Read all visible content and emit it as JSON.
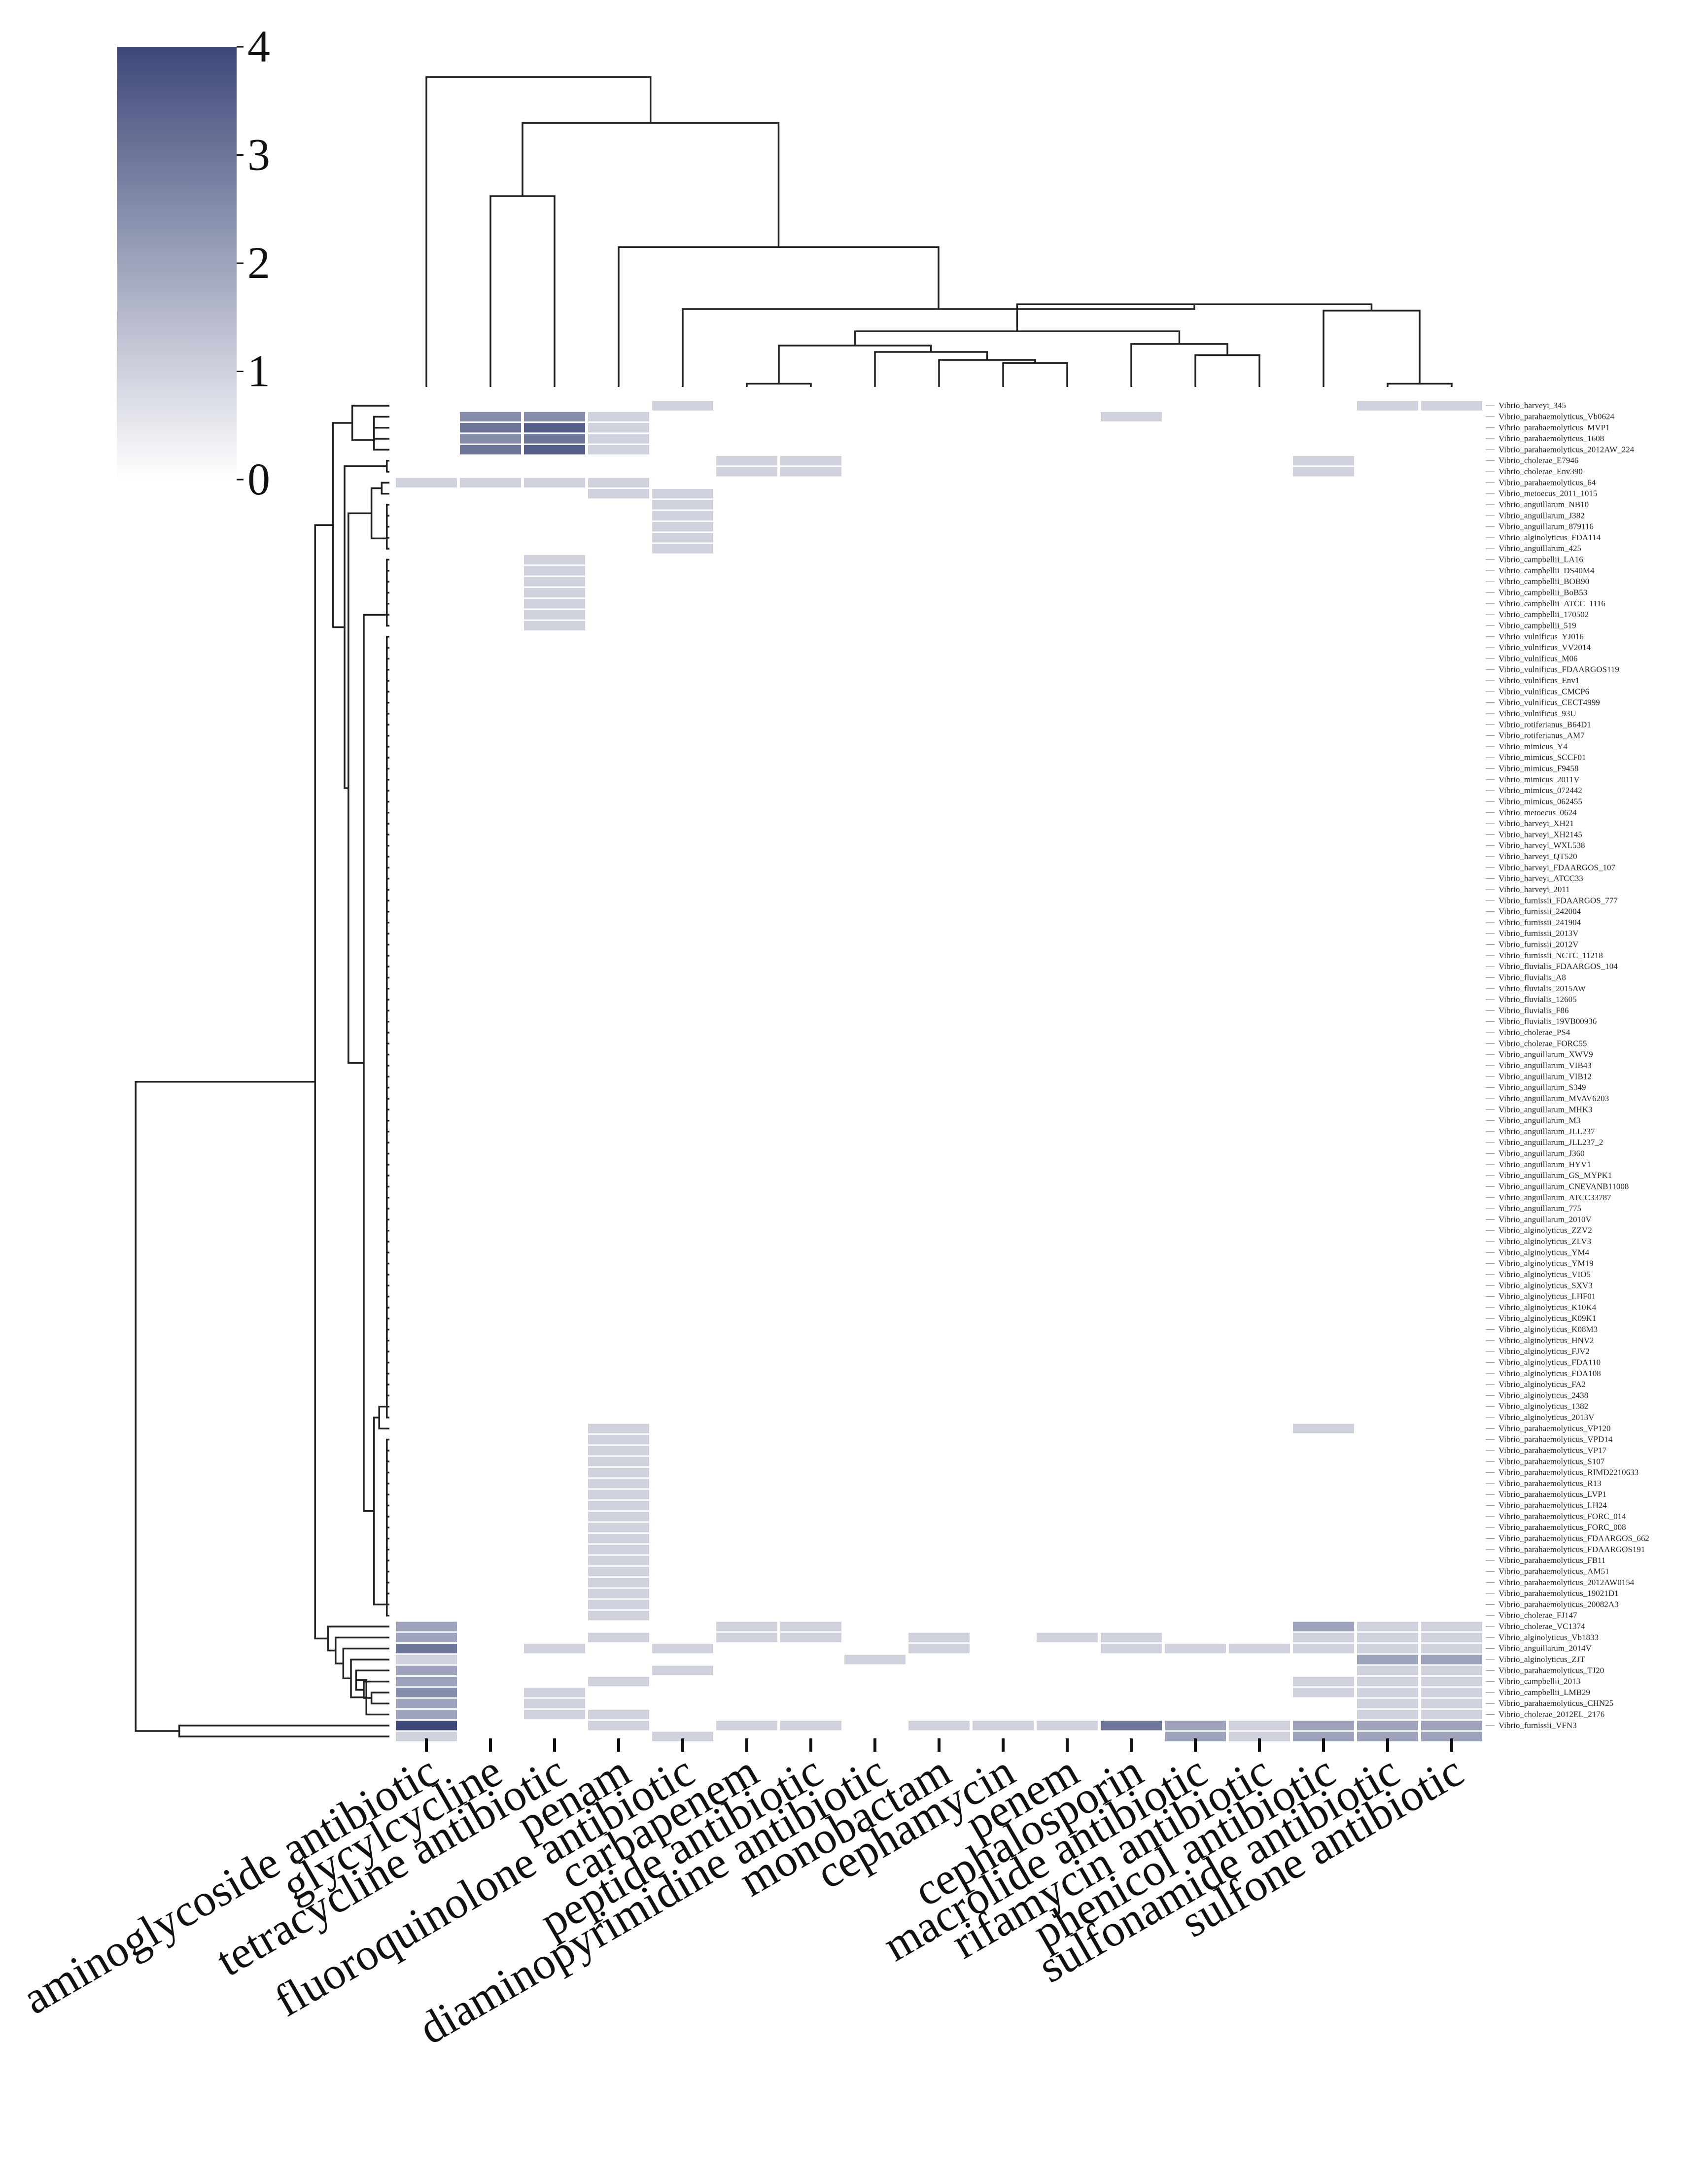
{
  "chart_data": {
    "type": "heatmap",
    "title": "",
    "colorbar": {
      "min": 0,
      "max": 4,
      "ticks": [
        0,
        1,
        2,
        3,
        4
      ],
      "low_color": "#ffffff",
      "high_color": "#3d4878"
    },
    "columns": [
      "aminoglycoside antibiotic",
      "glycylcycline",
      "tetracycline antibiotic",
      "penam",
      "fluoroquinolone antibiotic",
      "carbapenem",
      "peptide antibiotic",
      "diaminopyrimidine antibiotic",
      "monobactam",
      "cephamycin",
      "penem",
      "cephalosporin",
      "macrolide antibiotic",
      "rifamycin antibiotic",
      "phenicol antibiotic",
      "sulfonamide antibiotic",
      "sulfone antibiotic"
    ],
    "rows": [
      "Vibrio_harveyi_345",
      "Vibrio_parahaemolyticus_Vb0624",
      "Vibrio_parahaemolyticus_MVP1",
      "Vibrio_parahaemolyticus_1608",
      "Vibrio_parahaemolyticus_2012AW_224",
      "Vibrio_cholerae_E7946",
      "Vibrio_cholerae_Env390",
      "Vibrio_parahaemolyticus_64",
      "Vibrio_metoecus_2011_1015",
      "Vibrio_anguillarum_NB10",
      "Vibrio_anguillarum_J382",
      "Vibrio_anguillarum_879116",
      "Vibrio_alginolyticus_FDA114",
      "Vibrio_anguillarum_425",
      "Vibrio_campbellii_LA16",
      "Vibrio_campbellii_DS40M4",
      "Vibrio_campbellii_BOB90",
      "Vibrio_campbellii_BoB53",
      "Vibrio_campbellii_ATCC_1116",
      "Vibrio_campbellii_170502",
      "Vibrio_campbellii_519",
      "Vibrio_vulnificus_YJ016",
      "Vibrio_vulnificus_VV2014",
      "Vibrio_vulnificus_M06",
      "Vibrio_vulnificus_FDAARGOS119",
      "Vibrio_vulnificus_Env1",
      "Vibrio_vulnificus_CMCP6",
      "Vibrio_vulnificus_CECT4999",
      "Vibrio_vulnificus_93U",
      "Vibrio_rotiferianus_B64D1",
      "Vibrio_rotiferianus_AM7",
      "Vibrio_mimicus_Y4",
      "Vibrio_mimicus_SCCF01",
      "Vibrio_mimicus_F9458",
      "Vibrio_mimicus_2011V",
      "Vibrio_mimicus_072442",
      "Vibrio_mimicus_062455",
      "Vibrio_metoecus_0624",
      "Vibrio_harveyi_XH21",
      "Vibrio_harveyi_XH2145",
      "Vibrio_harveyi_WXL538",
      "Vibrio_harveyi_QT520",
      "Vibrio_harveyi_FDAARGOS_107",
      "Vibrio_harveyi_ATCC33",
      "Vibrio_harveyi_2011",
      "Vibrio_furnissii_FDAARGOS_777",
      "Vibrio_furnissii_242004",
      "Vibrio_furnissii_241904",
      "Vibrio_furnissii_2013V",
      "Vibrio_furnissii_2012V",
      "Vibrio_furnissii_NCTC_11218",
      "Vibrio_fluvialis_FDAARGOS_104",
      "Vibrio_fluvialis_A8",
      "Vibrio_fluvialis_2015AW",
      "Vibrio_fluvialis_12605",
      "Vibrio_fluvialis_F86",
      "Vibrio_fluvialis_19VB00936",
      "Vibrio_cholerae_PS4",
      "Vibrio_cholerae_FORC55",
      "Vibrio_anguillarum_XWV9",
      "Vibrio_anguillarum_VIB43",
      "Vibrio_anguillarum_VIB12",
      "Vibrio_anguillarum_S349",
      "Vibrio_anguillarum_MVAV6203",
      "Vibrio_anguillarum_MHK3",
      "Vibrio_anguillarum_M3",
      "Vibrio_anguillarum_JLL237",
      "Vibrio_anguillarum_JLL237_2",
      "Vibrio_anguillarum_J360",
      "Vibrio_anguillarum_HYV1",
      "Vibrio_anguillarum_GS_MYPK1",
      "Vibrio_anguillarum_CNEVANB11008",
      "Vibrio_anguillarum_ATCC33787",
      "Vibrio_anguillarum_775",
      "Vibrio_anguillarum_2010V",
      "Vibrio_alginolyticus_ZZV2",
      "Vibrio_alginolyticus_ZLV3",
      "Vibrio_alginolyticus_YM4",
      "Vibrio_alginolyticus_YM19",
      "Vibrio_alginolyticus_VIO5",
      "Vibrio_alginolyticus_SXV3",
      "Vibrio_alginolyticus_LHF01",
      "Vibrio_alginolyticus_K10K4",
      "Vibrio_alginolyticus_K09K1",
      "Vibrio_alginolyticus_K08M3",
      "Vibrio_alginolyticus_HNV2",
      "Vibrio_alginolyticus_FJV2",
      "Vibrio_alginolyticus_FDA110",
      "Vibrio_alginolyticus_FDA108",
      "Vibrio_alginolyticus_FA2",
      "Vibrio_alginolyticus_2438",
      "Vibrio_alginolyticus_1382",
      "Vibrio_alginolyticus_2013V",
      "Vibrio_parahaemolyticus_VP120",
      "Vibrio_parahaemolyticus_VPD14",
      "Vibrio_parahaemolyticus_VP17",
      "Vibrio_parahaemolyticus_S107",
      "Vibrio_parahaemolyticus_RIMD2210633",
      "Vibrio_parahaemolyticus_R13",
      "Vibrio_parahaemolyticus_LVP1",
      "Vibrio_parahaemolyticus_LH24",
      "Vibrio_parahaemolyticus_FORC_014",
      "Vibrio_parahaemolyticus_FORC_008",
      "Vibrio_parahaemolyticus_FDAARGOS_662",
      "Vibrio_parahaemolyticus_FDAARGOS191",
      "Vibrio_parahaemolyticus_FB11",
      "Vibrio_parahaemolyticus_AM51",
      "Vibrio_parahaemolyticus_2012AW0154",
      "Vibrio_parahaemolyticus_19021D1",
      "Vibrio_parahaemolyticus_20082A3",
      "Vibrio_cholerae_FJ147",
      "Vibrio_cholerae_VC1374",
      "Vibrio_alginolyticus_Vb1833",
      "Vibrio_anguillarum_2014V",
      "Vibrio_alginolyticus_ZJT",
      "Vibrio_parahaemolyticus_TJ20",
      "Vibrio_campbellii_2013",
      "Vibrio_campbellii_LMB29",
      "Vibrio_parahaemolyticus_CHN25",
      "Vibrio_cholerae_2012EL_2176",
      "Vibrio_furnissii_VFN3"
    ],
    "nonzero_cells": [
      [
        0,
        4,
        1
      ],
      [
        0,
        15,
        1
      ],
      [
        0,
        16,
        1
      ],
      [
        1,
        1,
        2.5
      ],
      [
        1,
        2,
        2.5
      ],
      [
        1,
        3,
        1
      ],
      [
        1,
        11,
        1
      ],
      [
        2,
        1,
        3
      ],
      [
        2,
        2,
        3.5
      ],
      [
        2,
        3,
        1
      ],
      [
        3,
        1,
        2.5
      ],
      [
        3,
        2,
        3
      ],
      [
        3,
        3,
        1
      ],
      [
        4,
        1,
        3
      ],
      [
        4,
        2,
        3.5
      ],
      [
        4,
        3,
        1
      ],
      [
        5,
        5,
        1
      ],
      [
        5,
        6,
        1
      ],
      [
        5,
        14,
        1
      ],
      [
        6,
        5,
        1
      ],
      [
        6,
        6,
        1
      ],
      [
        6,
        14,
        1
      ],
      [
        7,
        0,
        1
      ],
      [
        7,
        1,
        1
      ],
      [
        7,
        2,
        1
      ],
      [
        7,
        3,
        1
      ],
      [
        8,
        3,
        1
      ],
      [
        8,
        4,
        1
      ],
      [
        9,
        4,
        1
      ],
      [
        10,
        4,
        1
      ],
      [
        11,
        4,
        1
      ],
      [
        12,
        4,
        1
      ],
      [
        13,
        4,
        1
      ],
      [
        14,
        2,
        1
      ],
      [
        15,
        2,
        1
      ],
      [
        16,
        2,
        1
      ],
      [
        17,
        2,
        1
      ],
      [
        18,
        2,
        1
      ],
      [
        19,
        2,
        1
      ],
      [
        20,
        2,
        1
      ],
      [
        93,
        3,
        1
      ],
      [
        93,
        14,
        1
      ],
      [
        94,
        3,
        1
      ],
      [
        95,
        3,
        1
      ],
      [
        96,
        3,
        1
      ],
      [
        97,
        3,
        1
      ],
      [
        98,
        3,
        1
      ],
      [
        99,
        3,
        1
      ],
      [
        100,
        3,
        1
      ],
      [
        101,
        3,
        1
      ],
      [
        102,
        3,
        1
      ],
      [
        103,
        3,
        1
      ],
      [
        104,
        3,
        1
      ],
      [
        105,
        3,
        1
      ],
      [
        106,
        3,
        1
      ],
      [
        107,
        3,
        1
      ],
      [
        108,
        3,
        1
      ],
      [
        109,
        3,
        1
      ],
      [
        110,
        3,
        1
      ],
      [
        111,
        0,
        2
      ],
      [
        111,
        5,
        1
      ],
      [
        111,
        6,
        1
      ],
      [
        111,
        14,
        2
      ],
      [
        111,
        15,
        1
      ],
      [
        111,
        16,
        1
      ],
      [
        112,
        0,
        2
      ],
      [
        112,
        3,
        1
      ],
      [
        112,
        5,
        1
      ],
      [
        112,
        6,
        1
      ],
      [
        112,
        8,
        1
      ],
      [
        112,
        10,
        1
      ],
      [
        112,
        11,
        1
      ],
      [
        112,
        14,
        1
      ],
      [
        112,
        15,
        1
      ],
      [
        112,
        16,
        1
      ],
      [
        113,
        0,
        3
      ],
      [
        113,
        2,
        1
      ],
      [
        113,
        4,
        1
      ],
      [
        113,
        8,
        1
      ],
      [
        113,
        11,
        1
      ],
      [
        113,
        12,
        1
      ],
      [
        113,
        13,
        1
      ],
      [
        113,
        14,
        1
      ],
      [
        113,
        15,
        1
      ],
      [
        113,
        16,
        1
      ],
      [
        114,
        0,
        1
      ],
      [
        114,
        7,
        1
      ],
      [
        114,
        15,
        2
      ],
      [
        114,
        16,
        2
      ],
      [
        115,
        0,
        2
      ],
      [
        115,
        4,
        1
      ],
      [
        115,
        15,
        1
      ],
      [
        115,
        16,
        1
      ],
      [
        116,
        0,
        2
      ],
      [
        116,
        3,
        1
      ],
      [
        116,
        14,
        1
      ],
      [
        116,
        15,
        1
      ],
      [
        116,
        16,
        1
      ],
      [
        117,
        0,
        2.5
      ],
      [
        117,
        2,
        1
      ],
      [
        117,
        14,
        1
      ],
      [
        117,
        15,
        1
      ],
      [
        117,
        16,
        1
      ],
      [
        118,
        0,
        2
      ],
      [
        118,
        2,
        1
      ],
      [
        118,
        15,
        1
      ],
      [
        118,
        16,
        1
      ],
      [
        119,
        0,
        2
      ],
      [
        119,
        2,
        1
      ],
      [
        119,
        3,
        1
      ],
      [
        119,
        15,
        1
      ],
      [
        119,
        16,
        1
      ],
      [
        120,
        0,
        4
      ],
      [
        120,
        3,
        1
      ],
      [
        120,
        5,
        1
      ],
      [
        120,
        6,
        1
      ],
      [
        120,
        8,
        1
      ],
      [
        120,
        9,
        1
      ],
      [
        120,
        10,
        1
      ],
      [
        120,
        11,
        3
      ],
      [
        120,
        12,
        2
      ],
      [
        120,
        13,
        1
      ],
      [
        120,
        14,
        2
      ],
      [
        120,
        15,
        2
      ],
      [
        120,
        16,
        2
      ],
      [
        121,
        0,
        1
      ],
      [
        121,
        4,
        1
      ],
      [
        121,
        12,
        2
      ],
      [
        121,
        13,
        1
      ],
      [
        121,
        14,
        2
      ],
      [
        121,
        15,
        2
      ],
      [
        121,
        16,
        2
      ]
    ]
  }
}
